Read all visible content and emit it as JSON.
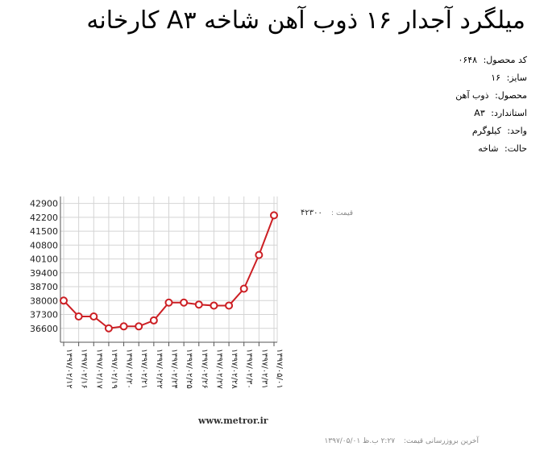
{
  "page": {
    "title": "میلگرد آجدار ۱۶ ذوب آهن شاخه A۳ کارخانه"
  },
  "details": [
    {
      "label": "کد محصول:",
      "value": "۰۶۴۸"
    },
    {
      "label": "سایز:",
      "value": "۱۶"
    },
    {
      "label": "محصول:",
      "value": "ذوب آهن"
    },
    {
      "label": "استاندارد:",
      "value": "A۳"
    },
    {
      "label": "واحد:",
      "value": "کیلوگرم"
    },
    {
      "label": "حالت:",
      "value": "شاخه"
    }
  ],
  "price": {
    "label": "قیمت :",
    "value": "۴۲۳۰۰"
  },
  "footer": {
    "watermark": "www.metror.ir",
    "last_update_label": "آخرین بروزرسانی قیمت:",
    "last_update_value": "۲:۲۷ ب.ظ ۱۳۹۷/۰۵/۰۱"
  },
  "colors": {
    "line": "#cc1f24",
    "grid": "#d4d4d4",
    "axis": "#555555"
  },
  "chart_data": {
    "type": "line",
    "title": "",
    "xlabel": "",
    "ylabel": "",
    "ylim": [
      35900,
      43250
    ],
    "yticks": [
      42900,
      42200,
      41500,
      40800,
      40100,
      39400,
      38700,
      38000,
      37300,
      36600
    ],
    "grid": true,
    "x": [
      "۱۳۹۷/۰۲/۱۲",
      "۱۳۹۷/۰۲/۱۶",
      "۱۳۹۷/۰۲/۱۷",
      "۱۳۹۷/۰۲/۱۹",
      "۱۳۹۷/۰۲/۲۰",
      "۱۳۹۷/۰۲/۲۱",
      "۱۳۹۷/۰۲/۲۲",
      "۱۳۹۷/۰۲/۲۴",
      "۱۳۹۷/۰۲/۲۵",
      "۱۳۹۷/۰۲/۲۶",
      "۱۳۹۷/۰۲/۲۷",
      "۱۳۹۷/۰۲/۲۸",
      "۱۳۹۷/۰۲/۳۰",
      "۱۳۹۷/۰۲/۳۱",
      "۱۳۹۷/۰۵/۰۱"
    ],
    "series": [
      {
        "values": [
          38000,
          37200,
          37200,
          36600,
          36700,
          36700,
          37000,
          37900,
          37900,
          37800,
          37750,
          37750,
          38600,
          40300,
          42300
        ]
      }
    ]
  }
}
